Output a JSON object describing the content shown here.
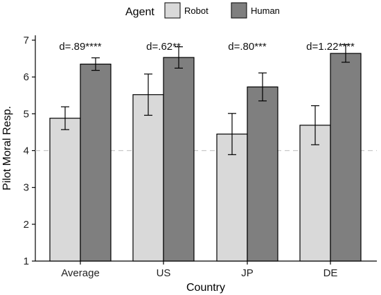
{
  "chart_data": {
    "type": "bar",
    "title": "",
    "xlabel": "Country",
    "ylabel": "Pilot Moral Resp.",
    "ylim": [
      1,
      7
    ],
    "yticks": [
      1,
      2,
      3,
      4,
      5,
      6,
      7
    ],
    "reference_line": 4,
    "grid": false,
    "legend": {
      "title": "Agent",
      "placement": "top"
    },
    "categories": [
      "Average",
      "US",
      "JP",
      "DE"
    ],
    "series": [
      {
        "name": "Robot",
        "color": "#d9d9d9",
        "values": [
          4.88,
          5.52,
          4.45,
          4.69
        ],
        "error_low": [
          4.57,
          4.96,
          3.89,
          4.16
        ],
        "error_high": [
          5.19,
          6.08,
          5.01,
          5.22
        ]
      },
      {
        "name": "Human",
        "color": "#7f7f7f",
        "values": [
          6.35,
          6.53,
          5.73,
          6.64
        ],
        "error_low": [
          6.18,
          6.24,
          5.35,
          6.4
        ],
        "error_high": [
          6.52,
          6.82,
          6.11,
          6.88
        ]
      }
    ],
    "annotations": [
      "d=.89****",
      "d=.62**",
      "d=.80***",
      "d=1.22****"
    ]
  }
}
